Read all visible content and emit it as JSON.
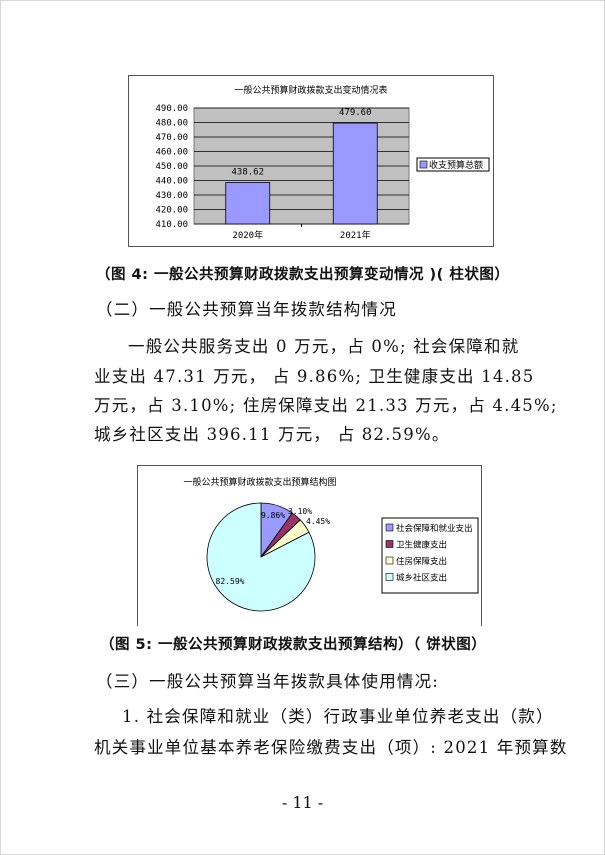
{
  "chart_data": [
    {
      "type": "bar",
      "title": "一般公共预算财政拨款支出变动情况表",
      "categories": [
        "2020年",
        "2021年"
      ],
      "series": [
        {
          "name": "收支预算总额",
          "values": [
            438.62,
            479.6
          ]
        }
      ],
      "data_labels": [
        "438.62",
        "479.60"
      ],
      "ylim": [
        410,
        490
      ],
      "yticks": [
        "410.00",
        "420.00",
        "430.00",
        "440.00",
        "450.00",
        "460.00",
        "470.00",
        "480.00",
        "490.00"
      ],
      "grid": true,
      "legend": "right",
      "colors": {
        "bar": "#9999ff",
        "plot_bg": "#c0c0c0"
      }
    },
    {
      "type": "pie",
      "title": "一般公共预算财政拨款支出预算结构图",
      "categories": [
        "社会保障和就业支出",
        "卫生健康支出",
        "住房保障支出",
        "城乡社区支出"
      ],
      "values": [
        9.86,
        3.1,
        4.45,
        82.59
      ],
      "data_labels": [
        "9.86%",
        "3.10%",
        "4.45%",
        "82.59%"
      ],
      "legend": "right",
      "colors": [
        "#9999ff",
        "#993366",
        "#ffffcc",
        "#ccffff"
      ]
    }
  ],
  "document": {
    "caption4": "（图 4: 一般公共预算财政拨款支出预算变动情况 )( 柱状图）",
    "heading2": "（二）一般公共预算当年拨款结构情况",
    "para": [
      "一般公共服务支出 0 万元，占 0%; 社会保障和就",
      "业支出 47.31 万元， 占 9.86%; 卫生健康支出 14.85",
      "万元，占 3.10%; 住房保障支出 21.33 万元，占 4.45%;",
      "城乡社区支出 396.11 万元， 占 82.59%。"
    ],
    "caption5": "（图 5:  一般公共预算财政拨款支出预算结构）（ 饼状图）",
    "heading3": "（三）一般公共预算当年拨款具体使用情况:",
    "item1": [
      "1. 社会保障和就业（类）行政事业单位养老支出（款）",
      "机关事业单位基本养老保险缴费支出（项）: 2021 年预算数"
    ],
    "page_number": "- 11 -"
  }
}
